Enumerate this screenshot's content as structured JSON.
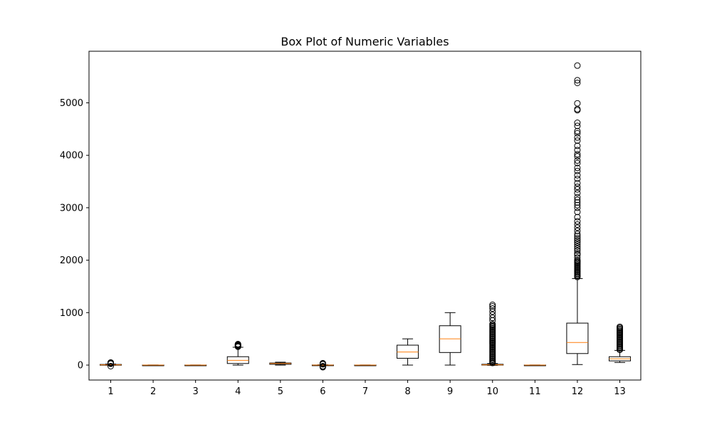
{
  "chart_data": {
    "type": "box",
    "title": "Box Plot of Numeric Variables",
    "xlabel": "",
    "ylabel": "",
    "categories": [
      "1",
      "2",
      "3",
      "4",
      "5",
      "6",
      "7",
      "8",
      "9",
      "10",
      "11",
      "12",
      "13"
    ],
    "ylim": [
      -300,
      5950
    ],
    "yticks": [
      0,
      1000,
      2000,
      3000,
      4000,
      5000
    ],
    "grid": false,
    "legend": "none",
    "colors": {
      "box": "#000000",
      "median": "#ff7f0e",
      "flier": "#000000"
    },
    "boxes": [
      {
        "label": "1",
        "whislo": -3,
        "q1": 2,
        "med": 5,
        "q3": 12,
        "whishi": 20,
        "fliers": [
          -20,
          25,
          30,
          35,
          40,
          45,
          50
        ]
      },
      {
        "label": "2",
        "whislo": -2,
        "q1": -1,
        "med": 0,
        "q3": 1,
        "whishi": 2,
        "fliers": []
      },
      {
        "label": "3",
        "whislo": -2,
        "q1": -1,
        "med": 0,
        "q3": 1,
        "whishi": 2,
        "fliers": []
      },
      {
        "label": "4",
        "whislo": 0,
        "q1": 30,
        "med": 90,
        "q3": 160,
        "whishi": 340,
        "fliers": [
          350,
          360,
          370,
          380,
          390,
          400
        ]
      },
      {
        "label": "5",
        "whislo": 0,
        "q1": 15,
        "med": 30,
        "q3": 40,
        "whishi": 55,
        "fliers": []
      },
      {
        "label": "6",
        "whislo": -5,
        "q1": -2,
        "med": 0,
        "q3": 2,
        "whishi": 5,
        "fliers": [
          -40,
          -30,
          -20,
          15,
          25,
          35
        ]
      },
      {
        "label": "7",
        "whislo": -2,
        "q1": -1,
        "med": 0,
        "q3": 1,
        "whishi": 2,
        "fliers": []
      },
      {
        "label": "8",
        "whislo": 0,
        "q1": 130,
        "med": 250,
        "q3": 380,
        "whishi": 500,
        "fliers": []
      },
      {
        "label": "9",
        "whislo": 0,
        "q1": 240,
        "med": 500,
        "q3": 750,
        "whishi": 1000,
        "fliers": []
      },
      {
        "label": "10",
        "whislo": -5,
        "q1": 0,
        "med": 5,
        "q3": 15,
        "whishi": 30,
        "fliers": [
          40,
          60,
          80,
          100,
          120,
          140,
          160,
          180,
          200,
          220,
          240,
          260,
          280,
          300,
          320,
          340,
          360,
          380,
          400,
          420,
          440,
          460,
          480,
          500,
          520,
          540,
          560,
          580,
          600,
          620,
          640,
          660,
          680,
          700,
          720,
          740,
          760,
          780,
          850,
          900,
          960,
          1020,
          1080,
          1120,
          1150
        ]
      },
      {
        "label": "11",
        "whislo": -2,
        "q1": -1,
        "med": 0,
        "q3": 1,
        "whishi": 2,
        "fliers": []
      },
      {
        "label": "12",
        "whislo": 10,
        "q1": 220,
        "med": 430,
        "q3": 800,
        "whishi": 1650,
        "fliers": [
          1680,
          1700,
          1720,
          1740,
          1760,
          1780,
          1800,
          1820,
          1840,
          1860,
          1880,
          1900,
          1920,
          1940,
          1960,
          1980,
          2000,
          2050,
          2100,
          2130,
          2180,
          2220,
          2260,
          2300,
          2340,
          2380,
          2420,
          2460,
          2500,
          2560,
          2620,
          2680,
          2740,
          2820,
          2920,
          3000,
          3050,
          3100,
          3150,
          3200,
          3280,
          3350,
          3400,
          3470,
          3550,
          3620,
          3700,
          3760,
          3850,
          3900,
          3980,
          4020,
          4100,
          4180,
          4280,
          4340,
          4420,
          4460,
          4560,
          4620,
          4860,
          4880,
          4990,
          5380,
          5430,
          5710
        ]
      },
      {
        "label": "13",
        "whislo": 50,
        "q1": 80,
        "med": 120,
        "q3": 160,
        "whishi": 280,
        "fliers": [
          290,
          310,
          330,
          350,
          370,
          390,
          410,
          430,
          450,
          470,
          490,
          510,
          530,
          550,
          570,
          590,
          610,
          630,
          650,
          670,
          690,
          710,
          730
        ]
      }
    ]
  }
}
